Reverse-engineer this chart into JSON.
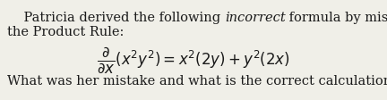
{
  "background_color": "#f0efe8",
  "text_color": "#1a1a1a",
  "fontsize_body": 10.5,
  "fontsize_formula": 12,
  "line1_pre_italic": "    Patricia derived the following ",
  "line1_italic": "incorrect",
  "line1_post_italic": " formula by misapplying",
  "line2": "the Product Rule:",
  "line3": "What was her mistake and what is the correct calculation?"
}
